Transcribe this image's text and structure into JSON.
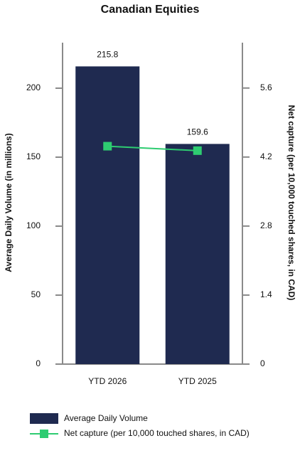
{
  "chart_data": {
    "type": "bar_line",
    "title": "Canadian Equities",
    "y_label": "Average Daily Volume (in millions)",
    "y2_label": "Net capture (per 10,000 touched shares, in CAD)",
    "categories": [
      "YTD 2026",
      "YTD 2025"
    ],
    "series": [
      {
        "name": "Average Daily Volume",
        "type": "bar",
        "color": "#1f2a50",
        "values": [
          215.8,
          159.6
        ]
      },
      {
        "name": "Net capture (per 10,000 touched shares, in CAD)",
        "type": "line",
        "axis": "y2",
        "color": "#2ecc71",
        "values": [
          4.42,
          4.33
        ]
      }
    ],
    "ylim": [
      0,
      233
    ],
    "yticks": [
      0,
      50,
      100,
      150,
      200
    ],
    "y2lim": [
      0,
      6.52
    ],
    "y2ticks": [
      0,
      1.4,
      2.8,
      4.2,
      5.6
    ],
    "legend": "bottom"
  }
}
